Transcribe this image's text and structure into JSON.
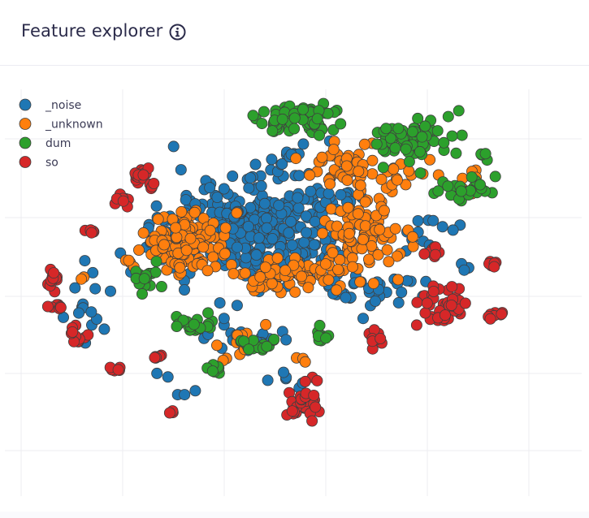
{
  "header": {
    "title": "Feature explorer",
    "info_icon": "info-circle-icon"
  },
  "chart_data": {
    "type": "scatter",
    "title": "",
    "xlabel": "",
    "ylabel": "",
    "grid": true,
    "legend": "top-left",
    "series": [
      {
        "name": "_noise",
        "color": "#1f77b4",
        "clusters": [
          {
            "cx": 320,
            "cy": 275,
            "rx": 120,
            "ry": 70,
            "n": 340
          },
          {
            "cx": 200,
            "cy": 300,
            "rx": 30,
            "ry": 35,
            "n": 20
          },
          {
            "cx": 460,
            "cy": 355,
            "rx": 80,
            "ry": 25,
            "n": 35
          },
          {
            "cx": 520,
            "cy": 280,
            "rx": 50,
            "ry": 40,
            "n": 14
          },
          {
            "cx": 110,
            "cy": 380,
            "rx": 40,
            "ry": 50,
            "n": 14
          },
          {
            "cx": 310,
            "cy": 410,
            "rx": 60,
            "ry": 30,
            "n": 20
          },
          {
            "cx": 360,
            "cy": 470,
            "rx": 40,
            "ry": 15,
            "n": 6
          },
          {
            "cx": 215,
            "cy": 470,
            "rx": 40,
            "ry": 30,
            "n": 5
          },
          {
            "cx": 360,
            "cy": 195,
            "rx": 60,
            "ry": 20,
            "n": 12
          },
          {
            "cx": 580,
            "cy": 320,
            "rx": 20,
            "ry": 20,
            "n": 3
          }
        ]
      },
      {
        "name": "_unknown",
        "color": "#ff7f0e",
        "clusters": [
          {
            "cx": 225,
            "cy": 300,
            "rx": 55,
            "ry": 45,
            "n": 130
          },
          {
            "cx": 445,
            "cy": 285,
            "rx": 45,
            "ry": 45,
            "n": 95
          },
          {
            "cx": 360,
            "cy": 335,
            "rx": 80,
            "ry": 25,
            "n": 85
          },
          {
            "cx": 420,
            "cy": 205,
            "rx": 50,
            "ry": 35,
            "n": 40
          },
          {
            "cx": 480,
            "cy": 215,
            "rx": 45,
            "ry": 25,
            "n": 20
          },
          {
            "cx": 160,
            "cy": 325,
            "rx": 10,
            "ry": 10,
            "n": 4
          },
          {
            "cx": 300,
            "cy": 420,
            "rx": 40,
            "ry": 30,
            "n": 10
          },
          {
            "cx": 570,
            "cy": 225,
            "rx": 40,
            "ry": 30,
            "n": 8
          },
          {
            "cx": 370,
            "cy": 440,
            "rx": 10,
            "ry": 15,
            "n": 3
          },
          {
            "cx": 100,
            "cy": 340,
            "rx": 10,
            "ry": 15,
            "n": 2
          }
        ]
      },
      {
        "name": "dum",
        "color": "#2ca02c",
        "clusters": [
          {
            "cx": 375,
            "cy": 148,
            "rx": 50,
            "ry": 20,
            "n": 75
          },
          {
            "cx": 510,
            "cy": 175,
            "rx": 60,
            "ry": 30,
            "n": 65
          },
          {
            "cx": 578,
            "cy": 235,
            "rx": 40,
            "ry": 20,
            "n": 25
          },
          {
            "cx": 178,
            "cy": 345,
            "rx": 15,
            "ry": 20,
            "n": 18
          },
          {
            "cx": 240,
            "cy": 400,
            "rx": 25,
            "ry": 15,
            "n": 20
          },
          {
            "cx": 310,
            "cy": 425,
            "rx": 25,
            "ry": 12,
            "n": 18
          },
          {
            "cx": 265,
            "cy": 455,
            "rx": 12,
            "ry": 8,
            "n": 10
          },
          {
            "cx": 395,
            "cy": 415,
            "rx": 12,
            "ry": 12,
            "n": 8
          },
          {
            "cx": 595,
            "cy": 190,
            "rx": 10,
            "ry": 8,
            "n": 4
          }
        ]
      },
      {
        "name": "so",
        "color": "#d62728",
        "clusters": [
          {
            "cx": 175,
            "cy": 215,
            "rx": 15,
            "ry": 10,
            "n": 15
          },
          {
            "cx": 150,
            "cy": 245,
            "rx": 10,
            "ry": 10,
            "n": 8
          },
          {
            "cx": 190,
            "cy": 228,
            "rx": 10,
            "ry": 6,
            "n": 5
          },
          {
            "cx": 112,
            "cy": 286,
            "rx": 8,
            "ry": 5,
            "n": 6
          },
          {
            "cx": 65,
            "cy": 345,
            "rx": 10,
            "ry": 15,
            "n": 12
          },
          {
            "cx": 70,
            "cy": 380,
            "rx": 10,
            "ry": 8,
            "n": 8
          },
          {
            "cx": 93,
            "cy": 412,
            "rx": 12,
            "ry": 15,
            "n": 12
          },
          {
            "cx": 193,
            "cy": 440,
            "rx": 10,
            "ry": 6,
            "n": 6
          },
          {
            "cx": 140,
            "cy": 456,
            "rx": 8,
            "ry": 6,
            "n": 6
          },
          {
            "cx": 210,
            "cy": 507,
            "rx": 5,
            "ry": 5,
            "n": 3
          },
          {
            "cx": 370,
            "cy": 500,
            "rx": 25,
            "ry": 15,
            "n": 25
          },
          {
            "cx": 463,
            "cy": 418,
            "rx": 10,
            "ry": 12,
            "n": 10
          },
          {
            "cx": 545,
            "cy": 380,
            "rx": 30,
            "ry": 28,
            "n": 45
          },
          {
            "cx": 535,
            "cy": 310,
            "rx": 12,
            "ry": 8,
            "n": 8
          },
          {
            "cx": 607,
            "cy": 325,
            "rx": 8,
            "ry": 6,
            "n": 6
          },
          {
            "cx": 608,
            "cy": 388,
            "rx": 12,
            "ry": 6,
            "n": 8
          },
          {
            "cx": 380,
            "cy": 490,
            "rx": 15,
            "ry": 30,
            "n": 10
          }
        ]
      }
    ]
  }
}
